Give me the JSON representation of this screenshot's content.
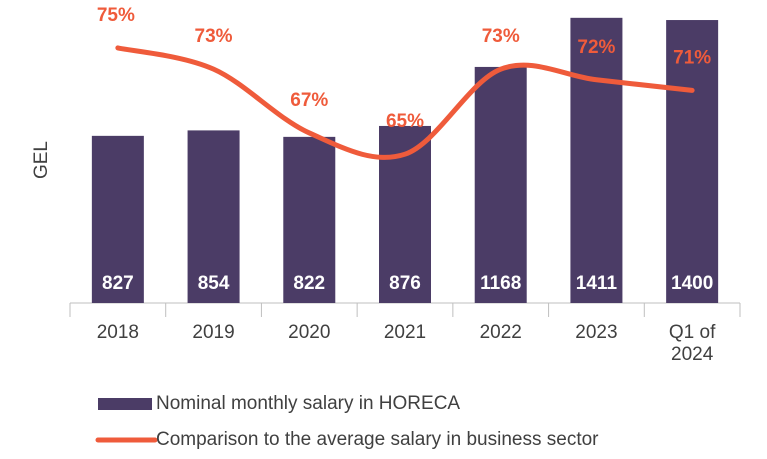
{
  "chart_data": {
    "type": "bar-line",
    "categories": [
      "2018",
      "2019",
      "2020",
      "2021",
      "2022",
      "2023",
      "Q1 of 2024"
    ],
    "ylabel": "GEL",
    "ylim": [
      0,
      1420
    ],
    "y2lim": [
      51,
      78
    ],
    "series": [
      {
        "name": "Nominal monthly salary in HORECA",
        "type": "bar",
        "color": "#4b3c66",
        "values": [
          827,
          854,
          822,
          876,
          1168,
          1411,
          1400
        ]
      },
      {
        "name": "Comparison to the average salary in business sector",
        "type": "line",
        "axis": "y2",
        "color": "#ef5b3b",
        "values": [
          75,
          73,
          67,
          65,
          73,
          72,
          71
        ],
        "value_labels": [
          "75%",
          "73%",
          "67%",
          "65%",
          "73%",
          "72%",
          "71%"
        ]
      }
    ]
  }
}
